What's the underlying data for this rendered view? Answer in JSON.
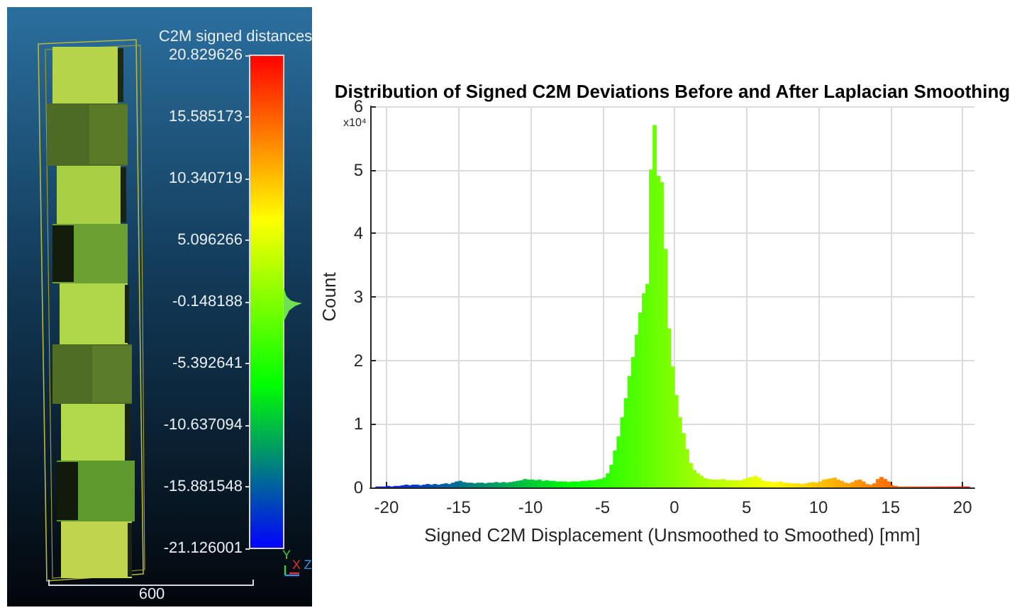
{
  "chart_data": {
    "type": "histogram",
    "title": "Distribution of Signed C2M Deviations Before and After Laplacian Smoothing",
    "xlabel": "Signed C2M Displacement (Unsmoothed to Smoothed) [mm]",
    "ylabel": "Count",
    "annotations": [
      "x10⁴",
      "600",
      "Y",
      "X",
      "Z"
    ],
    "clabel": "C2M signed distances",
    "clim": [
      -21.126001,
      20.829626
    ],
    "cticks": [
      -21.126001,
      -15.881548,
      -10.637094,
      -5.392641,
      -0.148188,
      5.096266,
      10.340719,
      15.585173,
      20.829626
    ],
    "bins": [
      -20.75,
      -20.5,
      -20.25,
      -20,
      -19.75,
      -19.5,
      -19.25,
      -19,
      -18.75,
      -18.5,
      -18.25,
      -18,
      -17.75,
      -17.5,
      -17.25,
      -17,
      -16.75,
      -16.5,
      -16.25,
      -16,
      -15.75,
      -15.5,
      -15.25,
      -15,
      -14.75,
      -14.5,
      -14.25,
      -14,
      -13.75,
      -13.5,
      -13.25,
      -13,
      -12.75,
      -12.5,
      -12.25,
      -12,
      -11.75,
      -11.5,
      -11.25,
      -11,
      -10.75,
      -10.5,
      -10.25,
      -10,
      -9.75,
      -9.5,
      -9.25,
      -9,
      -8.75,
      -8.5,
      -8.25,
      -8,
      -7.75,
      -7.5,
      -7.25,
      -7,
      -6.75,
      -6.5,
      -6.25,
      -6,
      -5.75,
      -5.5,
      -5.25,
      -5,
      -4.75,
      -4.5,
      -4.25,
      -4,
      -3.75,
      -3.5,
      -3.25,
      -3,
      -2.75,
      -2.5,
      -2.25,
      -2,
      -1.75,
      -1.5,
      -1.25,
      -1,
      -0.75,
      -0.5,
      -0.25,
      0,
      0.25,
      0.5,
      0.75,
      1,
      1.25,
      1.5,
      1.75,
      2,
      2.25,
      2.5,
      2.75,
      3,
      3.25,
      3.5,
      3.75,
      4,
      4.25,
      4.5,
      4.75,
      5,
      5.25,
      5.5,
      5.75,
      6,
      6.25,
      6.5,
      6.75,
      7,
      7.25,
      7.5,
      7.75,
      8,
      8.25,
      8.5,
      8.75,
      9,
      9.25,
      9.5,
      9.75,
      10,
      10.25,
      10.5,
      10.75,
      11,
      11.25,
      11.5,
      11.75,
      12,
      12.25,
      12.5,
      12.75,
      13,
      13.25,
      13.5,
      13.75,
      14,
      14.25,
      14.5,
      14.75,
      15,
      15.25,
      15.5,
      15.75,
      16,
      16.25,
      16.5,
      16.75,
      17,
      17.25,
      17.5,
      17.75,
      18,
      18.25,
      18.5,
      18.75,
      19,
      19.25,
      19.5,
      19.75,
      20,
      20.25,
      20.5
    ],
    "values": [
      0.01,
      0.01,
      0.01,
      0.02,
      0.01,
      0.02,
      0.02,
      0.03,
      0.04,
      0.03,
      0.04,
      0.04,
      0.03,
      0.04,
      0.05,
      0.04,
      0.05,
      0.04,
      0.05,
      0.06,
      0.05,
      0.07,
      0.09,
      0.1,
      0.08,
      0.07,
      0.07,
      0.06,
      0.07,
      0.07,
      0.06,
      0.07,
      0.07,
      0.08,
      0.07,
      0.08,
      0.07,
      0.08,
      0.09,
      0.1,
      0.11,
      0.13,
      0.12,
      0.12,
      0.11,
      0.12,
      0.1,
      0.11,
      0.1,
      0.1,
      0.09,
      0.09,
      0.09,
      0.08,
      0.09,
      0.09,
      0.09,
      0.1,
      0.1,
      0.11,
      0.11,
      0.12,
      0.13,
      0.15,
      0.22,
      0.35,
      0.58,
      0.8,
      1.1,
      1.4,
      1.75,
      2.05,
      2.4,
      2.75,
      3.05,
      3.2,
      5,
      5.7,
      4.9,
      4.8,
      3.75,
      2.5,
      1.9,
      1.45,
      1.1,
      0.85,
      0.6,
      0.38,
      0.27,
      0.22,
      0.18,
      0.14,
      0.13,
      0.12,
      0.12,
      0.12,
      0.13,
      0.11,
      0.11,
      0.11,
      0.11,
      0.11,
      0.13,
      0.15,
      0.16,
      0.18,
      0.15,
      0.11,
      0.09,
      0.09,
      0.08,
      0.08,
      0.09,
      0.07,
      0.07,
      0.06,
      0.06,
      0.06,
      0.05,
      0.06,
      0.07,
      0.08,
      0.07,
      0.09,
      0.12,
      0.13,
      0.14,
      0.15,
      0.12,
      0.1,
      0.07,
      0.06,
      0.08,
      0.11,
      0.12,
      0.09,
      0.05,
      0.04,
      0.06,
      0.13,
      0.16,
      0.13,
      0.09,
      0.03,
      0.02,
      0.01,
      0.01,
      0.01,
      0.01,
      0.01,
      0.01,
      0.01,
      0.01,
      0.01,
      0.01,
      0.01,
      0.01,
      0.01,
      0.01,
      0.01,
      0.01,
      0.01,
      0.01,
      0.01,
      0.01
    ],
    "colors": [
      "#0009f6",
      "#000ef1",
      "#0012ed",
      "#0017e8",
      "#001be4",
      "#0020df",
      "#0025da",
      "#0029d6",
      "#002ed1",
      "#0032cd",
      "#0037c8",
      "#003bc4",
      "#0040bf",
      "#0044bb",
      "#0049b6",
      "#004eb1",
      "#0052ad",
      "#0057a8",
      "#005ba4",
      "#00609f",
      "#00649b",
      "#006996",
      "#006d92",
      "#00728d",
      "#007788",
      "#007b84",
      "#00807f",
      "#00847b",
      "#008976",
      "#008d72",
      "#00926d",
      "#009669",
      "#009b64",
      "#00a05f",
      "#00a45b",
      "#00a956",
      "#00ad52",
      "#00b24d",
      "#00b649",
      "#00bb44",
      "#00bf40",
      "#00c43b",
      "#00c936",
      "#00cd32",
      "#00d22d",
      "#00d629",
      "#00db24",
      "#00df20",
      "#00e41b",
      "#00e817",
      "#00ed12",
      "#00f20d",
      "#00f609",
      "#00fb04",
      "#00ff00",
      "#05ff00",
      "#09ff00",
      "#0eff00",
      "#13ff00",
      "#17ff00",
      "#1cff00",
      "#20ff00",
      "#25ff00",
      "#29ff00",
      "#2eff00",
      "#32ff00",
      "#37ff00",
      "#3cff00",
      "#40ff00",
      "#45ff00",
      "#49ff00",
      "#4eff00",
      "#52ff00",
      "#57ff00",
      "#5bff00",
      "#60ff00",
      "#65ff00",
      "#69ff00",
      "#6eff00",
      "#72ff00",
      "#77ff00",
      "#7bff00",
      "#80ff00",
      "#84ff00",
      "#89ff00",
      "#8eff00",
      "#92ff00",
      "#97ff00",
      "#9bff00",
      "#a0ff00",
      "#a4ff00",
      "#a9ff00",
      "#adff00",
      "#b2ff00",
      "#b7ff00",
      "#bbff00",
      "#c0ff00",
      "#c4ff00",
      "#c9ff00",
      "#cdff00",
      "#d2ff00",
      "#d7ff00",
      "#dbff00",
      "#e0ff00",
      "#e4ff00",
      "#e9ff00",
      "#edff00",
      "#f2ff00",
      "#f6ff00",
      "#fbff00",
      "#fffe00",
      "#fffa00",
      "#fff500",
      "#fff100",
      "#ffec00",
      "#ffe800",
      "#ffe300",
      "#ffdf00",
      "#ffda00",
      "#ffd500",
      "#ffd100",
      "#ffcc00",
      "#ffc800",
      "#ffc300",
      "#ffbf00",
      "#ffba00",
      "#ffb600",
      "#ffb100",
      "#ffac00",
      "#ffa800",
      "#ffa300",
      "#ff9f00",
      "#ff9a00",
      "#ff9600",
      "#ff9100",
      "#ff8d00",
      "#ff8800",
      "#ff8300",
      "#ff7f00",
      "#ff7a00",
      "#ff7600",
      "#ff7100",
      "#ff6d00",
      "#ff6800",
      "#ff6300",
      "#ff5f00",
      "#ff5a00",
      "#ff5600",
      "#ff5100",
      "#ff4d00",
      "#ff4800",
      "#ff4400",
      "#ff3f00",
      "#ff3a00",
      "#ff3600",
      "#ff3100",
      "#ff2d00",
      "#ff2800",
      "#ff2400",
      "#ff1f00",
      "#ff1b00",
      "#ff1600",
      "#ff1100",
      "#ff0d00",
      "#ff0800"
    ],
    "xlim": [
      -21.13,
      20.83
    ],
    "ylim": [
      0,
      6
    ],
    "xticks": [
      -20,
      -15,
      -10,
      -5,
      0,
      5,
      10,
      15,
      20
    ],
    "yticks": [
      0,
      1,
      2,
      3,
      4,
      5,
      6
    ],
    "grid": true
  }
}
